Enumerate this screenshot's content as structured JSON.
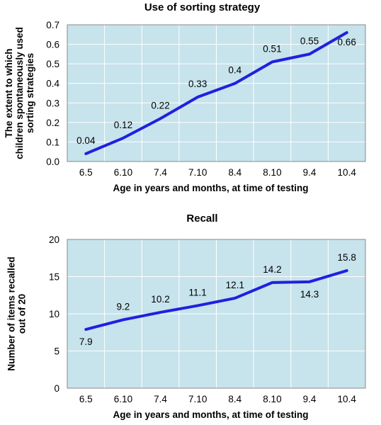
{
  "chart_data": [
    {
      "type": "line",
      "title": "Use of sorting strategy",
      "xlabel": "Age in years and months, at time of testing",
      "ylabel": [
        "The extent to which",
        "children spontaneously used",
        "sorting strategies"
      ],
      "categories": [
        "6.5",
        "6.10",
        "7.4",
        "7.10",
        "8.4",
        "8.10",
        "9.4",
        "10.4"
      ],
      "values": [
        0.04,
        0.12,
        0.22,
        0.33,
        0.4,
        0.51,
        0.55,
        0.66
      ],
      "value_labels": [
        "0.04",
        "0.12",
        "0.22",
        "0.33",
        "0.4",
        "0.51",
        "0.55",
        "0.66"
      ],
      "ylim": [
        0,
        0.7
      ],
      "yticks": [
        "0.0",
        "0.1",
        "0.2",
        "0.3",
        "0.4",
        "0.5",
        "0.6",
        "0.7"
      ],
      "grid": true,
      "line_color": "#2020e0",
      "background_color": "#c7e3ec",
      "grid_color": "#ffffff"
    },
    {
      "type": "line",
      "title": "Recall",
      "xlabel": "Age in years and months, at time of testing",
      "ylabel": [
        "Number of items recalled",
        "out of 20"
      ],
      "categories": [
        "6.5",
        "6.10",
        "7.4",
        "7.10",
        "8.4",
        "8.10",
        "9.4",
        "10.4"
      ],
      "values": [
        7.9,
        9.2,
        10.2,
        11.1,
        12.1,
        14.2,
        14.3,
        15.8
      ],
      "value_labels": [
        "7.9",
        "9.2",
        "10.2",
        "11.1",
        "12.1",
        "14.2",
        "14.3",
        "15.8"
      ],
      "ylim": [
        0,
        20
      ],
      "yticks": [
        "0",
        "5",
        "10",
        "15",
        "20"
      ],
      "grid": true,
      "line_color": "#2020e0",
      "background_color": "#c7e3ec",
      "grid_color": "#ffffff"
    }
  ]
}
